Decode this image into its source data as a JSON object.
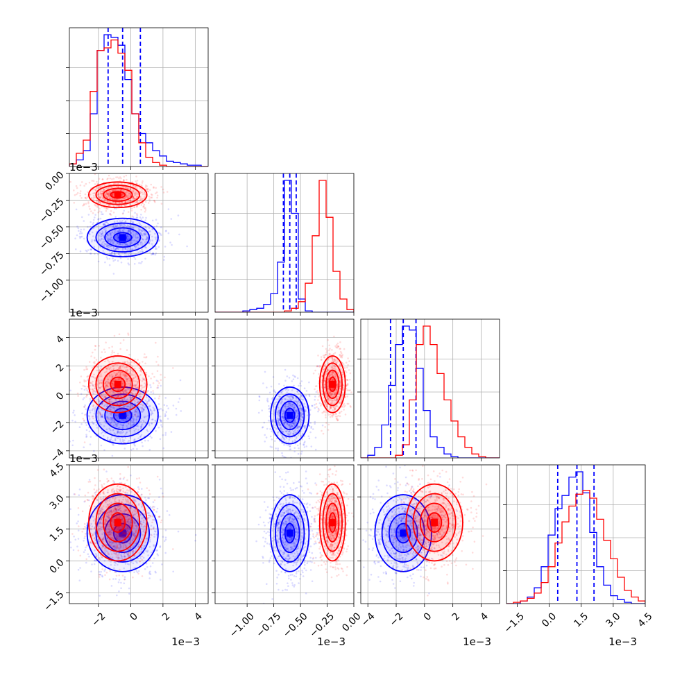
{
  "colors": {
    "series_a": "#0000ff",
    "series_b": "#ff0000",
    "grid": "#b0b0b0"
  },
  "chart_data": {
    "type": "corner",
    "grid": true,
    "parameters": [
      {
        "range": [
          -3.8,
          4.8
        ],
        "ticks": [
          -2,
          0,
          2,
          4
        ],
        "tick_labels": [
          "−2",
          "0",
          "2",
          "4"
        ],
        "offset_text": "1e−3"
      },
      {
        "range": [
          -1.3,
          0.0
        ],
        "ticks": [
          -1.0,
          -0.75,
          -0.5,
          -0.25,
          0.0
        ],
        "tick_labels": [
          "−1.00",
          "−0.75",
          "−0.50",
          "−0.25",
          "0.00"
        ],
        "offset_text": "1e−3"
      },
      {
        "range": [
          -4.5,
          5.3
        ],
        "ticks": [
          -4,
          -2,
          0,
          2,
          4
        ],
        "tick_labels": [
          "−4",
          "−2",
          "0",
          "2",
          "4"
        ],
        "offset_text": "1e−3"
      },
      {
        "range": [
          -2.0,
          4.5
        ],
        "ticks": [
          -1.5,
          0.0,
          1.5,
          3.0,
          4.5
        ],
        "tick_labels": [
          "−1.5",
          "0.0",
          "1.5",
          "3.0",
          "4.5"
        ],
        "offset_text": "1e−3"
      }
    ],
    "series": [
      {
        "color": "#0000ff",
        "mean": [
          -0.5,
          -0.6,
          -1.5,
          1.3
        ],
        "std": [
          1.1,
          0.09,
          1.0,
          0.9
        ],
        "histograms": [
          [
            0.02,
            0.05,
            0.12,
            0.4,
            0.88,
            1.0,
            0.98,
            0.92,
            0.66,
            0.4,
            0.25,
            0.18,
            0.12,
            0.08,
            0.04,
            0.03,
            0.02,
            0.01,
            0.01,
            0.0
          ],
          [
            0.0,
            0.0,
            0.0,
            0.0,
            0.01,
            0.02,
            0.03,
            0.06,
            0.14,
            0.38,
            1.0,
            0.75,
            0.1,
            0.01,
            0.0,
            0.0,
            0.0,
            0.0,
            0.0,
            0.0
          ],
          [
            0.0,
            0.02,
            0.08,
            0.25,
            0.55,
            0.86,
            1.0,
            0.97,
            0.68,
            0.36,
            0.16,
            0.08,
            0.03,
            0.01,
            0.0,
            0.0,
            0.0,
            0.0,
            0.0,
            0.0
          ],
          [
            0.0,
            0.0,
            0.02,
            0.05,
            0.12,
            0.28,
            0.52,
            0.72,
            0.82,
            0.96,
            1.0,
            0.84,
            0.54,
            0.28,
            0.14,
            0.06,
            0.03,
            0.01,
            0.0,
            0.0
          ]
        ],
        "quantiles": [
          [
            -1.4,
            -0.5,
            0.6
          ],
          [
            -0.66,
            -0.6,
            -0.54
          ],
          [
            -2.4,
            -1.5,
            -0.6
          ],
          [
            0.4,
            1.3,
            2.1
          ]
        ]
      },
      {
        "color": "#ff0000",
        "mean": [
          -0.8,
          -0.2,
          0.7,
          1.8
        ],
        "std": [
          0.9,
          0.06,
          1.0,
          0.9
        ],
        "histograms": [
          [
            0.02,
            0.1,
            0.2,
            0.57,
            0.88,
            0.9,
            0.96,
            0.86,
            0.73,
            0.4,
            0.18,
            0.07,
            0.03,
            0.01,
            0.0,
            0.0,
            0.0,
            0.0,
            0.0,
            0.0
          ],
          [
            0.0,
            0.0,
            0.0,
            0.0,
            0.0,
            0.0,
            0.0,
            0.0,
            0.0,
            0.0,
            0.01,
            0.03,
            0.08,
            0.22,
            0.58,
            1.0,
            0.72,
            0.31,
            0.1,
            0.02
          ],
          [
            0.0,
            0.0,
            0.0,
            0.0,
            0.0,
            0.02,
            0.1,
            0.44,
            0.86,
            1.0,
            0.86,
            0.64,
            0.44,
            0.28,
            0.16,
            0.08,
            0.03,
            0.01,
            0.0,
            0.0
          ],
          [
            0.0,
            0.01,
            0.02,
            0.04,
            0.08,
            0.16,
            0.28,
            0.46,
            0.62,
            0.74,
            0.83,
            0.86,
            0.8,
            0.64,
            0.48,
            0.34,
            0.2,
            0.1,
            0.05,
            0.02
          ]
        ],
        "quantiles": []
      }
    ]
  }
}
